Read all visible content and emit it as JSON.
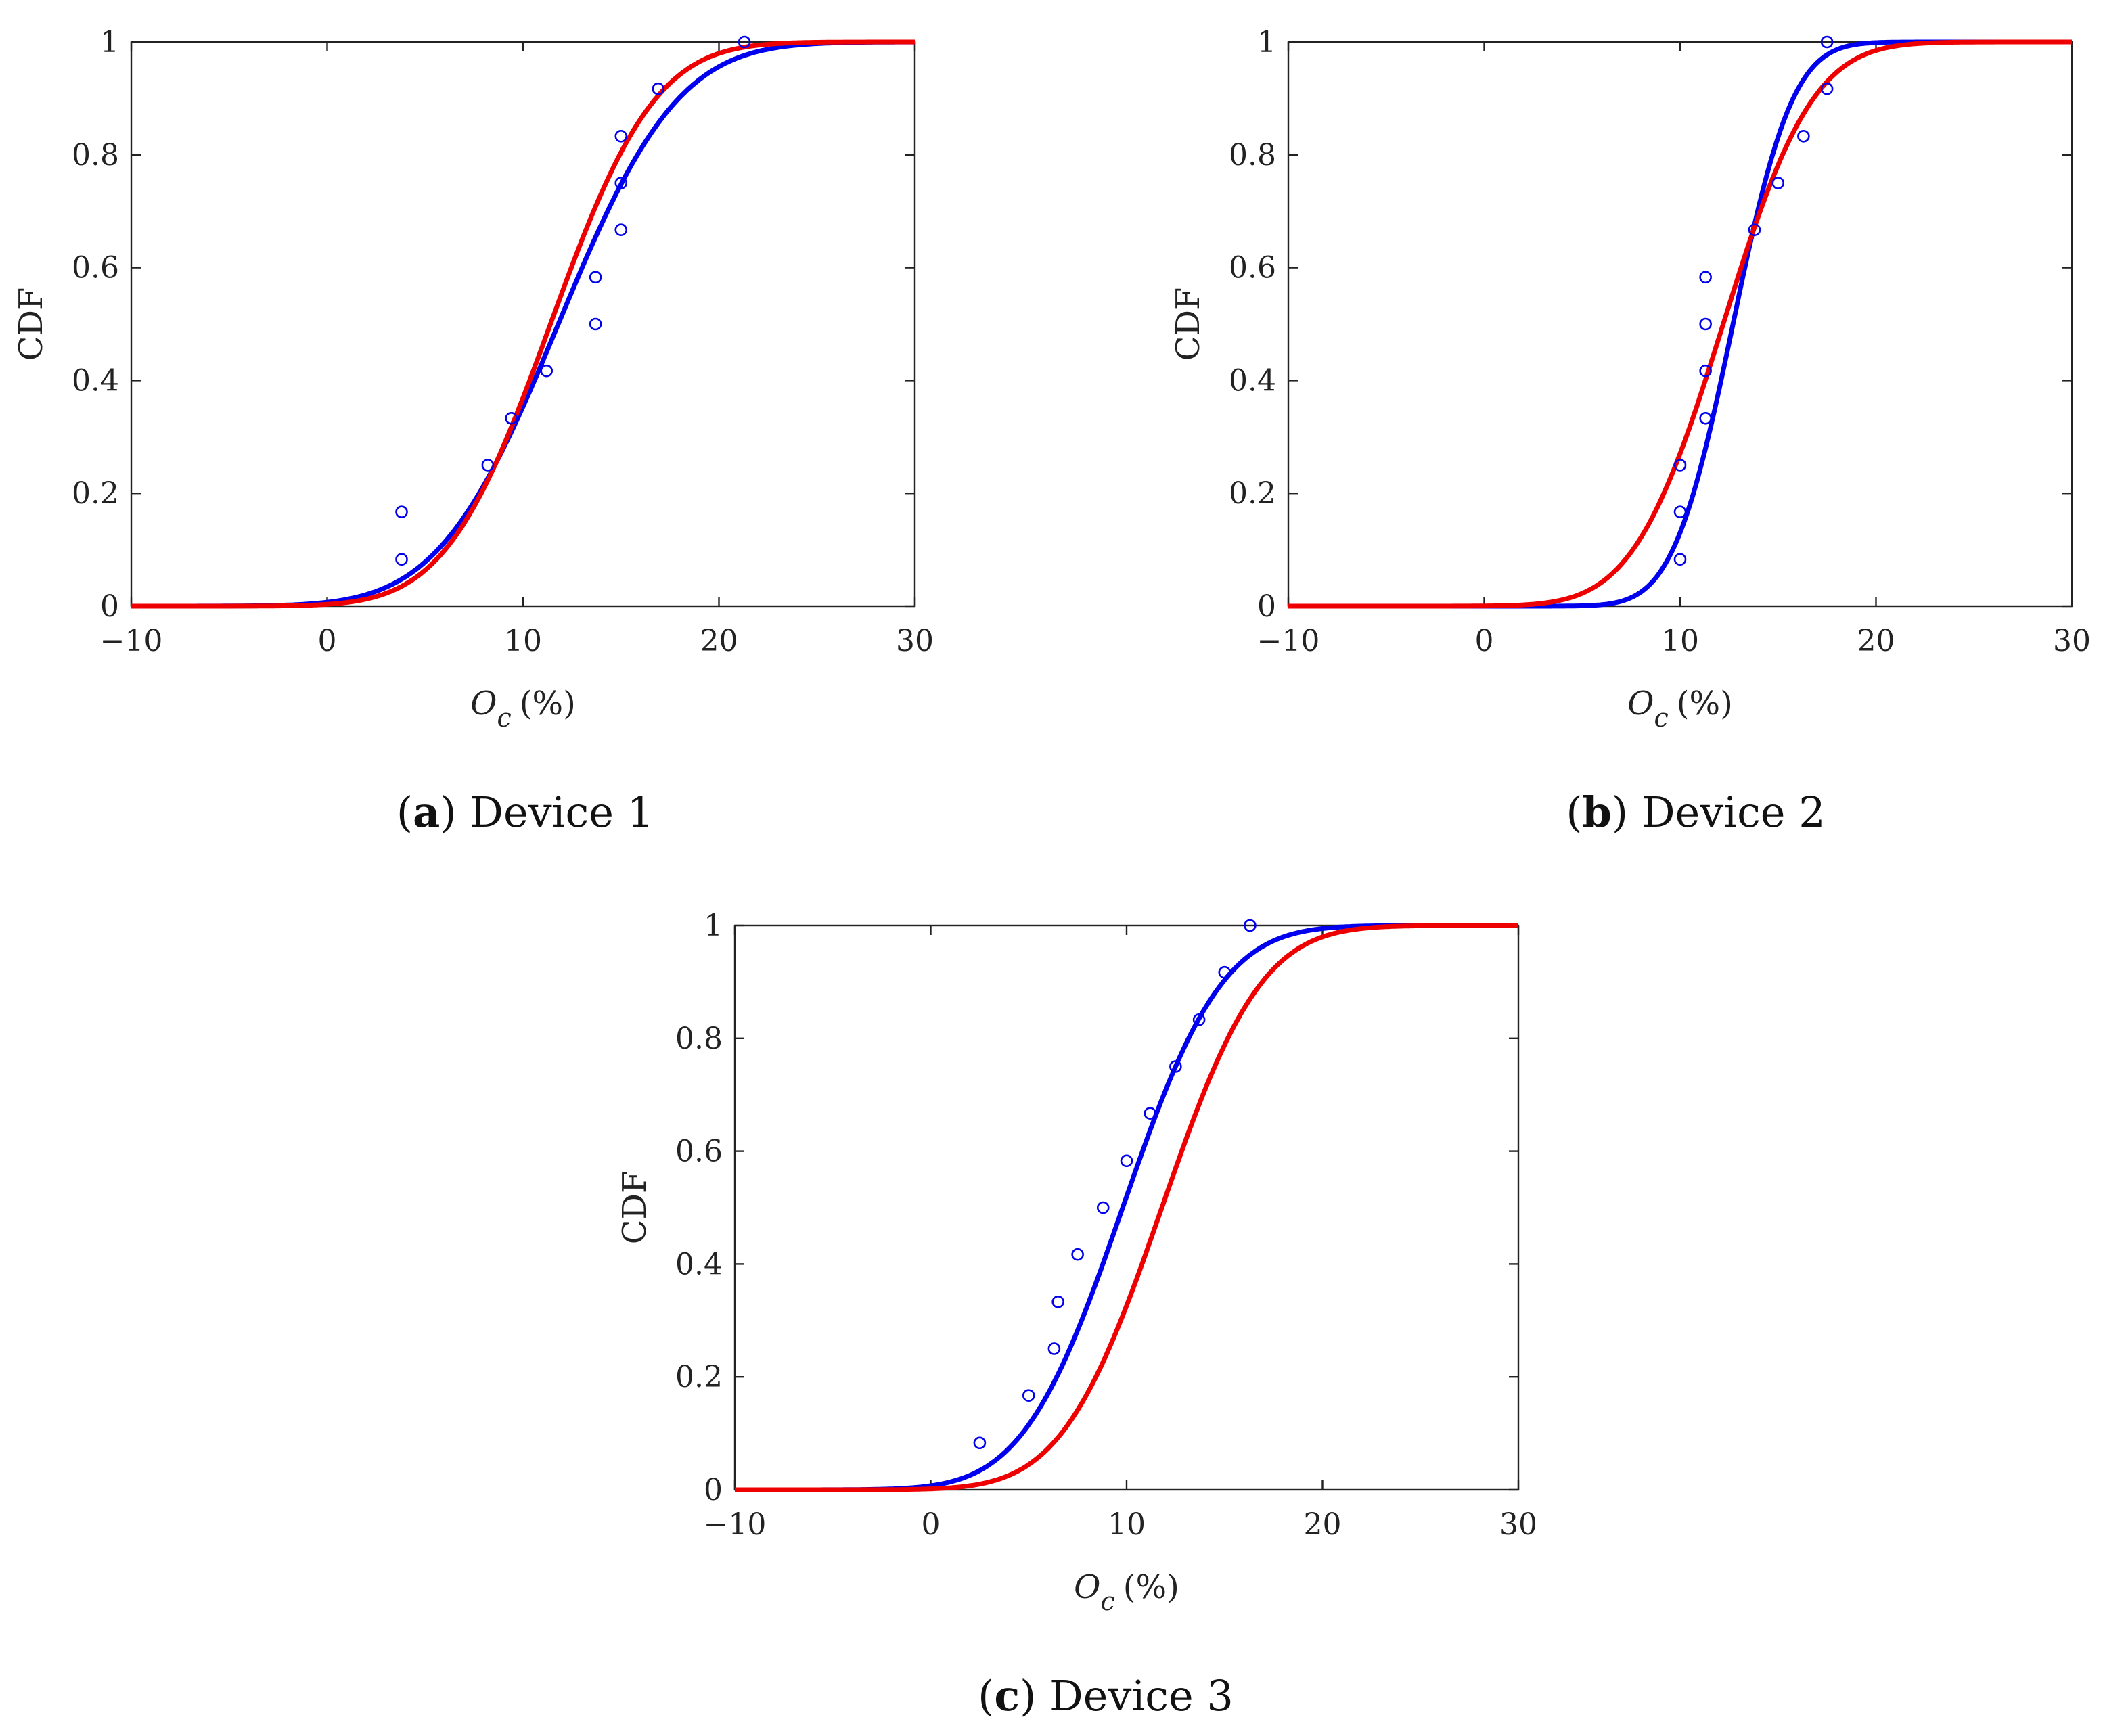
{
  "figure": {
    "panels": [
      {
        "caption_open": "(",
        "caption_letter": "a",
        "caption_close": ")",
        "caption_text": "Device 1"
      },
      {
        "caption_open": "(",
        "caption_letter": "b",
        "caption_close": ")",
        "caption_text": "Device 2"
      },
      {
        "caption_open": "(",
        "caption_letter": "c",
        "caption_close": ")",
        "caption_text": "Device 3"
      }
    ]
  },
  "colors": {
    "empirical": "#0000ee",
    "fit_blue": "#0000ee",
    "fit_red": "#ee0000",
    "axis": "#222222"
  },
  "chart_data": [
    {
      "type": "line",
      "title": "Device 1",
      "xlabel_main": "O",
      "xlabel_sub": "c",
      "xlabel_unit": "(%)",
      "ylabel": "CDF",
      "xlim": [
        -10,
        30
      ],
      "ylim": [
        0,
        1
      ],
      "xticks": [
        -10,
        0,
        10,
        20,
        30
      ],
      "xtick_labels": [
        "−10",
        "0",
        "10",
        "20",
        "30"
      ],
      "yticks": [
        0,
        0.2,
        0.4,
        0.6,
        0.8,
        1
      ],
      "ytick_labels": [
        "0",
        "0.2",
        "0.4",
        "0.6",
        "0.8",
        "1"
      ],
      "grid": false,
      "series": [
        {
          "name": "empirical",
          "kind": "scatter",
          "color": "#0000ee",
          "x": [
            3.8,
            3.8,
            8.2,
            9.4,
            11.2,
            13.7,
            13.7,
            15.0,
            15.0,
            15.0,
            16.9,
            21.3
          ],
          "y": [
            0.083,
            0.167,
            0.25,
            0.333,
            0.417,
            0.5,
            0.583,
            0.667,
            0.75,
            0.833,
            0.917,
            1.0
          ]
        },
        {
          "name": "blue fit",
          "kind": "line",
          "color": "#0000ee",
          "mu": 11.8,
          "sigma": 4.8
        },
        {
          "name": "red fit",
          "kind": "line",
          "color": "#ee0000",
          "mu": 11.4,
          "sigma": 4.2
        }
      ]
    },
    {
      "type": "line",
      "title": "Device 2",
      "xlabel_main": "O",
      "xlabel_sub": "c",
      "xlabel_unit": "(%)",
      "ylabel": "CDF",
      "xlim": [
        -10,
        30
      ],
      "ylim": [
        0,
        1
      ],
      "xticks": [
        -10,
        0,
        10,
        20,
        30
      ],
      "xtick_labels": [
        "−10",
        "0",
        "10",
        "20",
        "30"
      ],
      "yticks": [
        0,
        0.2,
        0.4,
        0.6,
        0.8,
        1
      ],
      "ytick_labels": [
        "0",
        "0.2",
        "0.4",
        "0.6",
        "0.8",
        "1"
      ],
      "grid": false,
      "series": [
        {
          "name": "empirical",
          "kind": "scatter",
          "color": "#0000ee",
          "x": [
            10.0,
            10.0,
            10.0,
            11.3,
            11.3,
            11.3,
            11.3,
            13.8,
            15.0,
            16.3,
            17.5,
            17.5
          ],
          "y": [
            0.083,
            0.167,
            0.25,
            0.333,
            0.417,
            0.5,
            0.583,
            0.667,
            0.75,
            0.833,
            0.917,
            1.0
          ]
        },
        {
          "name": "blue fit",
          "kind": "line",
          "color": "#0000ee",
          "mu": 12.7,
          "sigma": 2.4
        },
        {
          "name": "red fit",
          "kind": "line",
          "color": "#ee0000",
          "mu": 12.2,
          "sigma": 3.6
        }
      ]
    },
    {
      "type": "line",
      "title": "Device 3",
      "xlabel_main": "O",
      "xlabel_sub": "c",
      "xlabel_unit": "(%)",
      "ylabel": "CDF",
      "xlim": [
        -10,
        30
      ],
      "ylim": [
        0,
        1
      ],
      "xticks": [
        -10,
        0,
        10,
        20,
        30
      ],
      "xtick_labels": [
        "−10",
        "0",
        "10",
        "20",
        "30"
      ],
      "yticks": [
        0,
        0.2,
        0.4,
        0.6,
        0.8,
        1
      ],
      "ytick_labels": [
        "0",
        "0.2",
        "0.4",
        "0.6",
        "0.8",
        "1"
      ],
      "grid": false,
      "series": [
        {
          "name": "empirical",
          "kind": "scatter",
          "color": "#0000ee",
          "x": [
            2.5,
            5.0,
            6.3,
            6.5,
            7.5,
            8.8,
            10.0,
            11.2,
            12.5,
            13.7,
            15.0,
            16.3
          ],
          "y": [
            0.083,
            0.167,
            0.25,
            0.333,
            0.417,
            0.5,
            0.583,
            0.667,
            0.75,
            0.833,
            0.917,
            1.0
          ]
        },
        {
          "name": "blue fit",
          "kind": "line",
          "color": "#0000ee",
          "mu": 9.8,
          "sigma": 4.0
        },
        {
          "name": "red fit",
          "kind": "line",
          "color": "#ee0000",
          "mu": 11.8,
          "sigma": 4.0
        }
      ]
    }
  ]
}
